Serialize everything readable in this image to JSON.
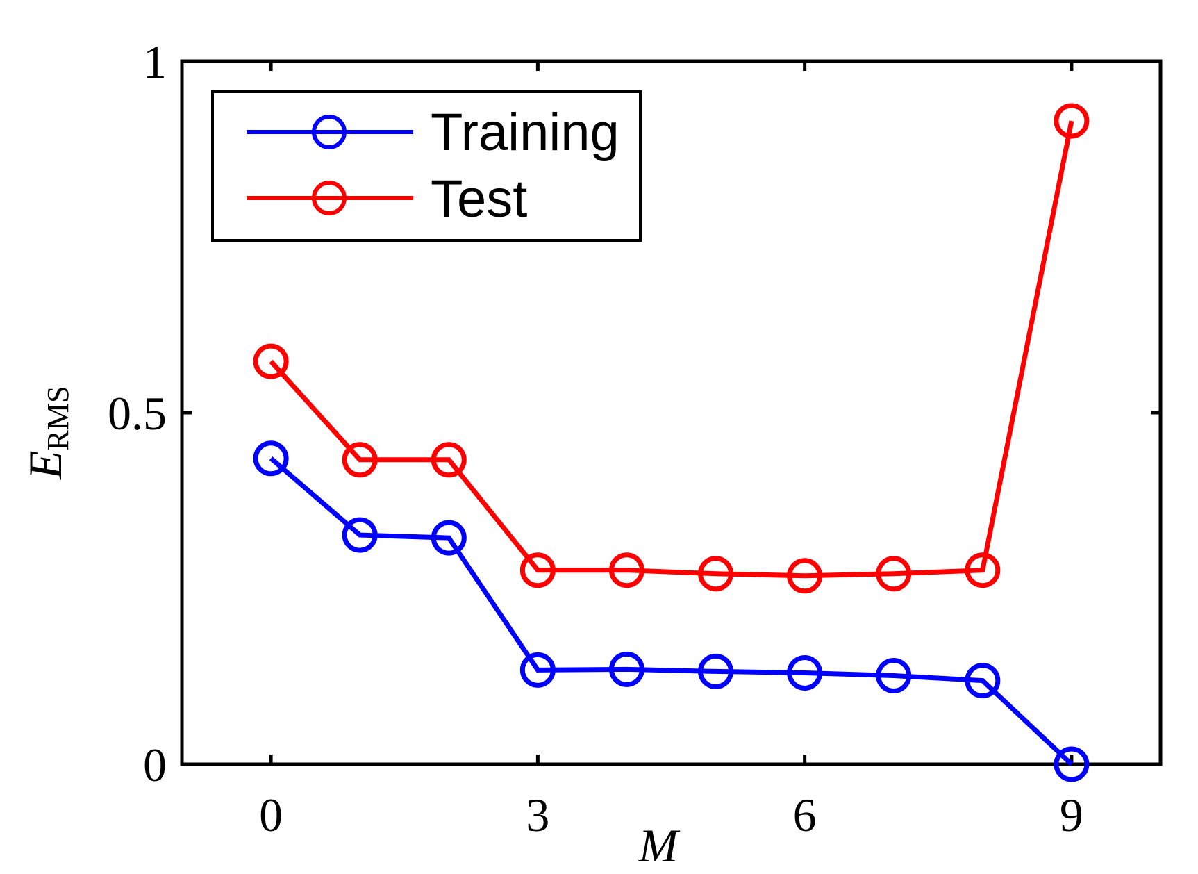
{
  "chart_data": {
    "type": "line",
    "title": "",
    "xlabel": "M",
    "ylabel": "E_RMS",
    "ylabel_main": "E",
    "ylabel_sub": "RMS",
    "x": [
      0,
      1,
      2,
      3,
      4,
      5,
      6,
      7,
      8,
      9
    ],
    "xlim": [
      -1,
      10
    ],
    "ylim": [
      0,
      1
    ],
    "xticks": [
      0,
      3,
      6,
      9
    ],
    "xtick_labels": [
      "0",
      "3",
      "6",
      "9"
    ],
    "yticks": [
      0,
      0.5,
      1
    ],
    "ytick_labels": [
      "0",
      "0.5",
      "1"
    ],
    "grid": false,
    "legend_position": "upper left",
    "series": [
      {
        "name": "Training",
        "color": "#0000ff",
        "marker": "circle-open",
        "values": [
          0.435,
          0.326,
          0.322,
          0.134,
          0.135,
          0.132,
          0.13,
          0.126,
          0.119,
          0.0
        ]
      },
      {
        "name": "Test",
        "color": "#ff0000",
        "marker": "circle-open",
        "values": [
          0.573,
          0.433,
          0.433,
          0.276,
          0.276,
          0.271,
          0.268,
          0.271,
          0.276,
          0.915
        ]
      }
    ]
  },
  "legend": {
    "items": [
      {
        "label": "Training",
        "color": "#0000ff"
      },
      {
        "label": "Test",
        "color": "#ff0000"
      }
    ]
  }
}
